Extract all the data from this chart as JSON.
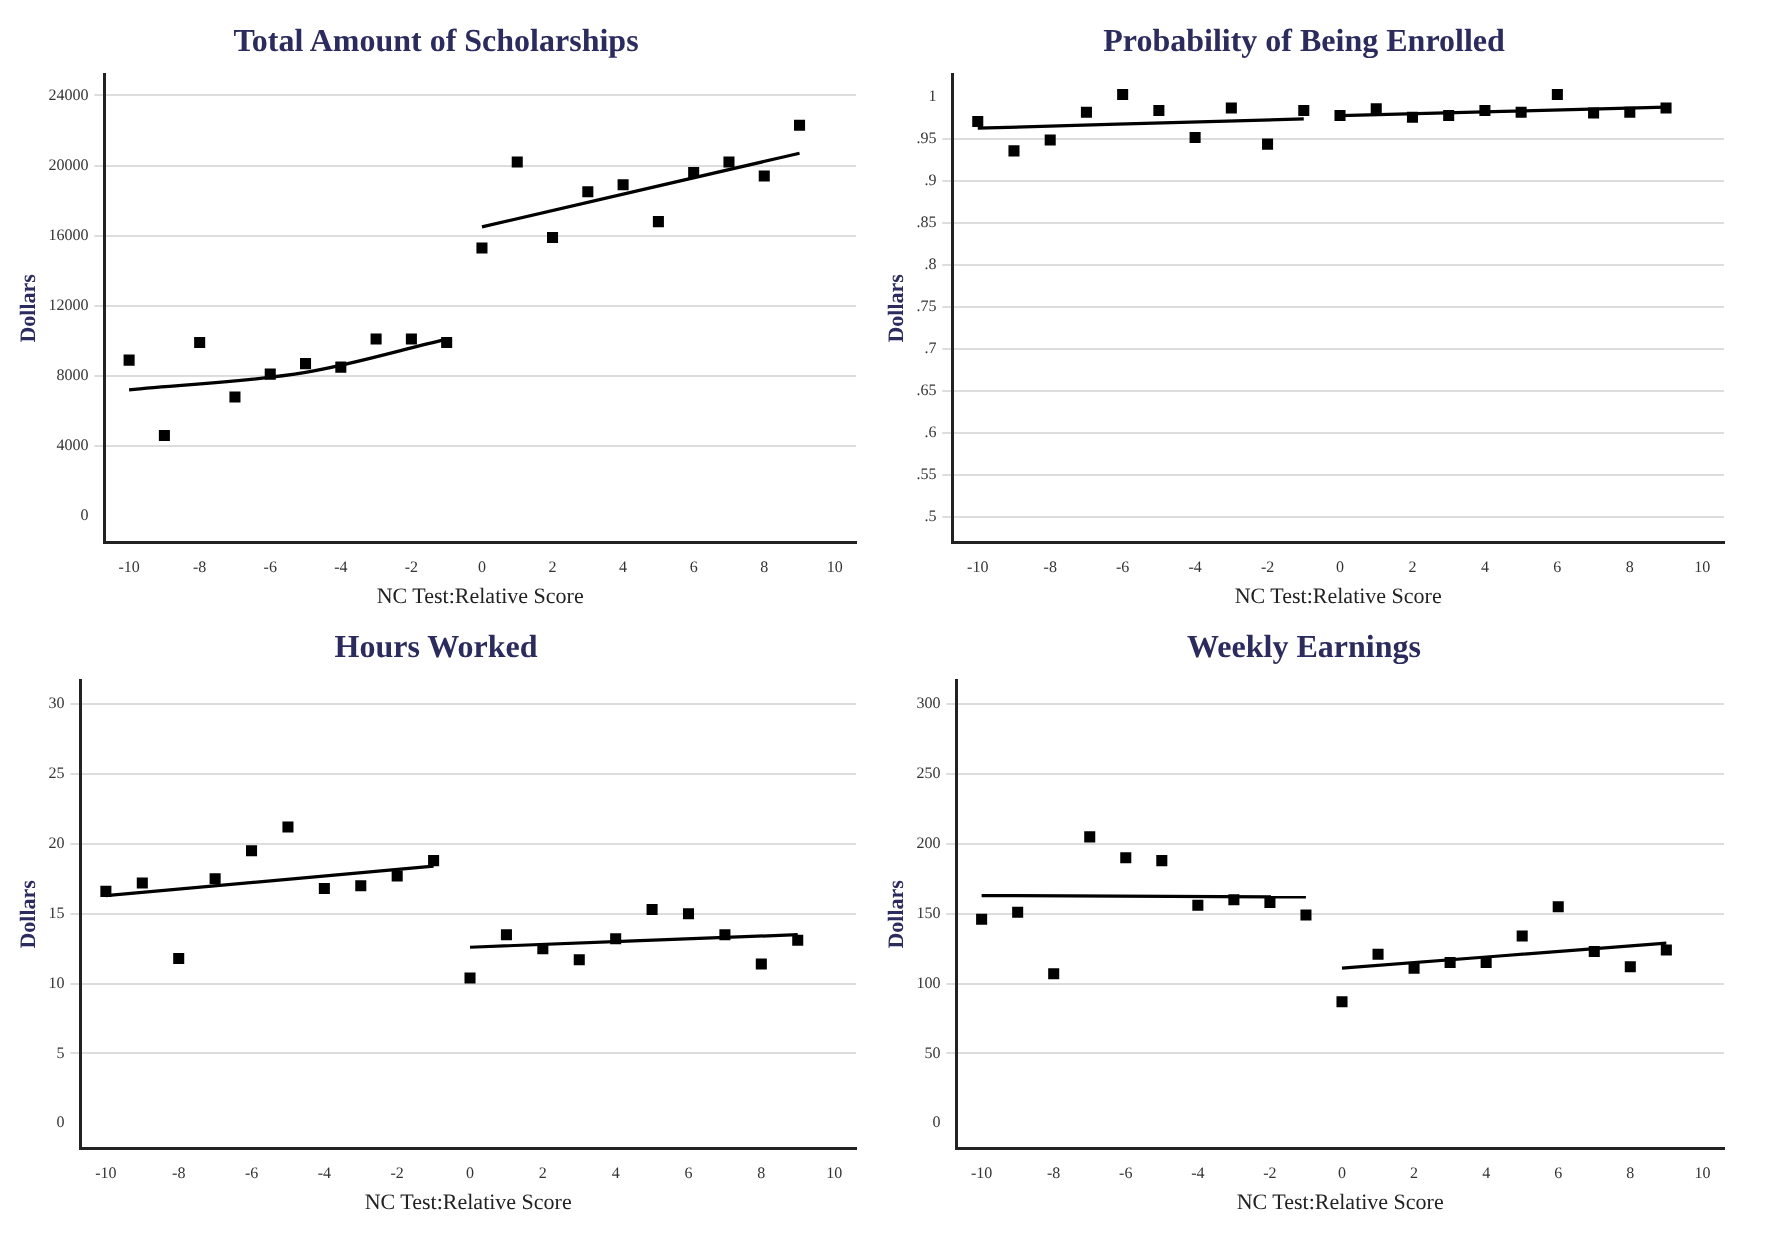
{
  "chart_data": [
    {
      "type": "scatter",
      "title": "Total Amount of Scholarships",
      "xlabel": "NC Test:Relative Score",
      "ylabel": "Dollars",
      "xlim": [
        -10.7,
        10.6
      ],
      "xticks": [
        -10,
        -8,
        -6,
        -4,
        -2,
        0,
        2,
        4,
        6,
        8,
        10
      ],
      "ylim": [
        -1500,
        25200
      ],
      "yticks": [
        0,
        4000,
        8000,
        12000,
        16000,
        20000,
        24000
      ],
      "grid": "y",
      "series": [
        {
          "color": "#000000",
          "marker": "square",
          "x": [
            -10,
            -9,
            -8,
            -7,
            -6,
            -5,
            -4,
            -3,
            -2,
            -1,
            0,
            1,
            2,
            3,
            4,
            5,
            6,
            7,
            8,
            9
          ],
          "values": [
            8900,
            4600,
            9900,
            6800,
            8100,
            8700,
            8500,
            10100,
            10100,
            9900,
            15300,
            20200,
            15900,
            18500,
            18900,
            16800,
            19600,
            20200,
            19400,
            22300
          ]
        },
        {
          "type": "line",
          "marker": "none",
          "color": "#000000",
          "x": [
            -10,
            -5,
            -1
          ],
          "values": [
            7200,
            8200,
            10100
          ]
        },
        {
          "type": "line",
          "marker": "none",
          "color": "#000000",
          "x": [
            0,
            9
          ],
          "values": [
            16500,
            20700
          ]
        }
      ]
    },
    {
      "type": "scatter",
      "title": "Probability of Being Enrolled",
      "xlabel": "NC Test:Relative Score",
      "ylabel": "Dollars",
      "xlim": [
        -10.7,
        10.6
      ],
      "xticks": [
        -10,
        -8,
        -6,
        -4,
        -2,
        0,
        2,
        4,
        6,
        8,
        10
      ],
      "ylim": [
        0.47,
        1.027
      ],
      "yticks": [
        1,
        {
          "value": 0.95,
          "label": ".95"
        },
        {
          "value": 0.9,
          "label": ".9"
        },
        {
          "value": 0.85,
          "label": ".85"
        },
        {
          "value": 0.8,
          "label": ".8"
        },
        {
          "value": 0.75,
          "label": ".75"
        },
        {
          "value": 0.7,
          "label": ".7"
        },
        {
          "value": 0.65,
          "label": ".65"
        },
        {
          "value": 0.6,
          "label": ".6"
        },
        {
          "value": 0.55,
          "label": ".55"
        },
        {
          "value": 0.5,
          "label": ".5"
        }
      ],
      "grid": "y",
      "series": [
        {
          "color": "#000000",
          "marker": "square",
          "x": [
            -10,
            -9,
            -8,
            -7,
            -6,
            -5,
            -4,
            -3,
            -2,
            -1,
            0,
            1,
            2,
            3,
            4,
            5,
            6,
            7,
            8,
            9
          ],
          "values": [
            0.971,
            0.936,
            0.949,
            0.982,
            1.003,
            0.984,
            0.952,
            0.987,
            0.944,
            0.984,
            0.978,
            0.986,
            0.976,
            0.978,
            0.984,
            0.982,
            1.003,
            0.981,
            0.982,
            0.987
          ]
        },
        {
          "type": "line",
          "marker": "none",
          "color": "#000000",
          "x": [
            -10,
            -1
          ],
          "values": [
            0.963,
            0.974
          ]
        },
        {
          "type": "line",
          "marker": "none",
          "color": "#000000",
          "x": [
            0,
            9
          ],
          "values": [
            0.978,
            0.988
          ]
        }
      ]
    },
    {
      "type": "scatter",
      "title": "Hours Worked",
      "xlabel": "NC Test:Relative Score",
      "ylabel": "Dollars",
      "xlim": [
        -10.7,
        10.6
      ],
      "xticks": [
        -10,
        -8,
        -6,
        -4,
        -2,
        0,
        2,
        4,
        6,
        8,
        10
      ],
      "ylim": [
        -1.8,
        31.7
      ],
      "yticks": [
        0,
        5,
        10,
        15,
        20,
        25,
        30
      ],
      "grid": "y",
      "series": [
        {
          "color": "#000000",
          "marker": "square",
          "x": [
            -10,
            -9,
            -8,
            -7,
            -6,
            -5,
            -4,
            -3,
            -2,
            -1,
            0,
            1,
            2,
            3,
            4,
            5,
            6,
            7,
            8,
            9
          ],
          "values": [
            16.6,
            17.2,
            11.8,
            17.5,
            19.5,
            21.2,
            16.8,
            17.0,
            17.7,
            18.8,
            10.4,
            13.5,
            12.5,
            11.7,
            13.2,
            15.3,
            15.0,
            13.5,
            11.4,
            13.1
          ]
        },
        {
          "type": "line",
          "marker": "none",
          "color": "#000000",
          "x": [
            -10,
            -1
          ],
          "values": [
            16.3,
            18.4
          ]
        },
        {
          "type": "line",
          "marker": "none",
          "color": "#000000",
          "x": [
            0,
            9
          ],
          "values": [
            12.6,
            13.5
          ]
        }
      ]
    },
    {
      "type": "scatter",
      "title": "Weekly Earnings",
      "xlabel": "NC Test:Relative Score",
      "ylabel": "Dollars",
      "xlim": [
        -10.7,
        10.6
      ],
      "xticks": [
        -10,
        -8,
        -6,
        -4,
        -2,
        0,
        2,
        4,
        6,
        8,
        10
      ],
      "ylim": [
        -18,
        317
      ],
      "yticks": [
        0,
        50,
        100,
        150,
        200,
        250,
        300
      ],
      "grid": "y",
      "series": [
        {
          "color": "#000000",
          "marker": "square",
          "x": [
            -10,
            -9,
            -8,
            -7,
            -6,
            -5,
            -4,
            -3,
            -2,
            -1,
            0,
            1,
            2,
            3,
            4,
            5,
            6,
            7,
            8,
            9
          ],
          "values": [
            146,
            151,
            107,
            205,
            190,
            188,
            156,
            160,
            158,
            149,
            87,
            121,
            111,
            115,
            115,
            134,
            155,
            123,
            112,
            124
          ]
        },
        {
          "type": "line",
          "marker": "none",
          "color": "#000000",
          "x": [
            -10,
            -1
          ],
          "values": [
            163,
            162
          ]
        },
        {
          "type": "line",
          "marker": "none",
          "color": "#000000",
          "x": [
            0,
            9
          ],
          "values": [
            111,
            129
          ]
        }
      ]
    }
  ]
}
